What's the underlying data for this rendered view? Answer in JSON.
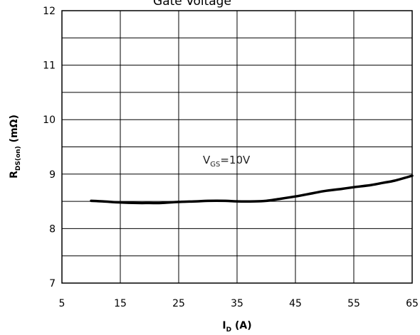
{
  "chart_data": {
    "type": "line",
    "title": "Gate Voltage",
    "xlabel_main": "I",
    "xlabel_sub": "D",
    "xlabel_unit": " (A)",
    "ylabel_main": "R",
    "ylabel_sub": "DS(on)",
    "ylabel_unit": " (mΩ)",
    "xlim": [
      5,
      65
    ],
    "ylim": [
      7,
      12
    ],
    "xticks": [
      5,
      15,
      25,
      35,
      45,
      55,
      65
    ],
    "yticks": [
      7,
      8,
      9,
      10,
      11,
      12
    ],
    "x_minor_grid_step": 10,
    "y_minor_grid_step": 0.5,
    "grid": true,
    "annotation": {
      "main": "V",
      "sub": "GS",
      "rest": "=10V",
      "x": 34,
      "y": 9.2
    },
    "series": [
      {
        "x": [
          10,
          12,
          15,
          18,
          20,
          22,
          25,
          28,
          30,
          33,
          35,
          38,
          40,
          42,
          45,
          48,
          50,
          53,
          55,
          58,
          60,
          62,
          65
        ],
        "y": [
          8.51,
          8.5,
          8.48,
          8.47,
          8.47,
          8.47,
          8.49,
          8.5,
          8.51,
          8.51,
          8.5,
          8.5,
          8.51,
          8.54,
          8.59,
          8.65,
          8.69,
          8.73,
          8.76,
          8.8,
          8.84,
          8.88,
          8.97
        ]
      }
    ]
  }
}
